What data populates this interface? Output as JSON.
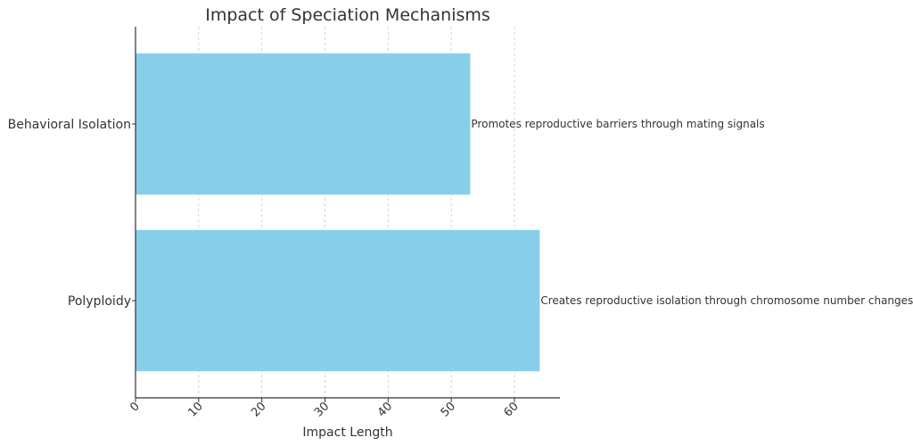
{
  "chart_data": {
    "type": "bar",
    "orientation": "horizontal",
    "title": "Impact of Speciation Mechanisms",
    "xlabel": "Impact Length",
    "ylabel": "",
    "categories": [
      "Behavioral Isolation",
      "Polyploidy"
    ],
    "values": [
      53,
      64
    ],
    "annotations": [
      "Promotes reproductive barriers through mating signals",
      "Creates reproductive isolation through chromosome number changes"
    ],
    "xlim": [
      0,
      67.2
    ],
    "xticks": [
      0,
      10,
      20,
      30,
      40,
      50,
      60
    ],
    "grid": "x-dashed",
    "bar_color": "#87CEEB"
  }
}
